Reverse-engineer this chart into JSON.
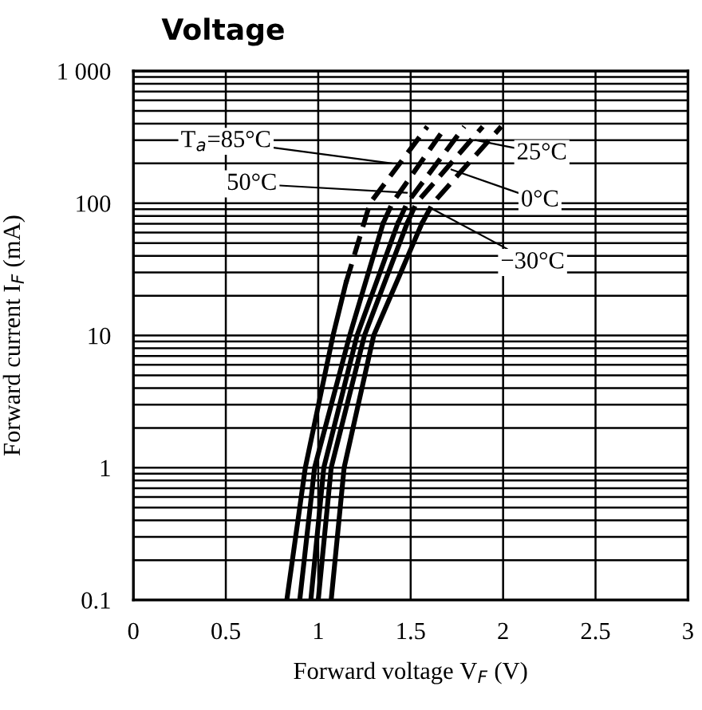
{
  "chart_data": {
    "type": "line",
    "title": "Voltage",
    "xlabel": "Forward voltage V$_{F}$ (V)",
    "ylabel": "Forward current I$_{F}$ (mA)",
    "log": "y",
    "grid": true,
    "marker": "none",
    "xlim": [
      0,
      3
    ],
    "xticks": [
      0,
      0.5,
      1,
      1.5,
      2,
      2.5,
      3
    ],
    "ylim": [
      0.1,
      1000
    ],
    "yticks": [
      0.1,
      1,
      10,
      100,
      {
        "value": 1000,
        "label": "1 000"
      }
    ],
    "series": [
      {
        "color": "#000000",
        "line_style": "solid",
        "x": [
          0.83,
          0.93,
          1.08,
          1.15
        ],
        "values": [
          0.1,
          1,
          10,
          25
        ]
      },
      {
        "color": "#000000",
        "line_style": "dashed",
        "x": [
          1.15,
          1.28,
          1.59
        ],
        "values": [
          25,
          100,
          380
        ]
      },
      {
        "color": "#000000",
        "line_style": "solid",
        "x": [
          0.9,
          0.98,
          1.17,
          1.35
        ],
        "values": [
          0.1,
          1,
          10,
          70
        ]
      },
      {
        "color": "#000000",
        "line_style": "dashed",
        "x": [
          1.35,
          1.4,
          1.69
        ],
        "values": [
          70,
          100,
          380
        ]
      },
      {
        "color": "#000000",
        "line_style": "solid",
        "x": [
          0.96,
          1.03,
          1.21,
          1.43
        ],
        "values": [
          0.1,
          1,
          10,
          70
        ]
      },
      {
        "color": "#000000",
        "line_style": "dashed",
        "x": [
          1.43,
          1.48,
          1.79
        ],
        "values": [
          70,
          100,
          380
        ]
      },
      {
        "color": "#000000",
        "line_style": "solid",
        "x": [
          1.0,
          1.07,
          1.25,
          1.48
        ],
        "values": [
          0.1,
          1,
          10,
          70
        ]
      },
      {
        "color": "#000000",
        "line_style": "dashed",
        "x": [
          1.48,
          1.53,
          1.89
        ],
        "values": [
          70,
          100,
          380
        ]
      },
      {
        "color": "#000000",
        "line_style": "solid",
        "x": [
          1.07,
          1.14,
          1.3,
          1.56
        ],
        "values": [
          0.1,
          1,
          10,
          70
        ]
      },
      {
        "color": "#000000",
        "line_style": "dashed",
        "x": [
          1.56,
          1.62,
          1.99
        ],
        "values": [
          70,
          100,
          380
        ]
      }
    ],
    "annotations": [
      {
        "text": "T$_{a}$=85°C",
        "x": 1.4,
        "y": 200
      },
      {
        "text": "50°C",
        "x": 1.48,
        "y": 120
      },
      {
        "text": "25°C",
        "x": 1.85,
        "y": 300
      },
      {
        "text": "0°C",
        "x": 1.72,
        "y": 180
      },
      {
        "text": "−30°C",
        "x": 1.62,
        "y": 90
      }
    ]
  }
}
